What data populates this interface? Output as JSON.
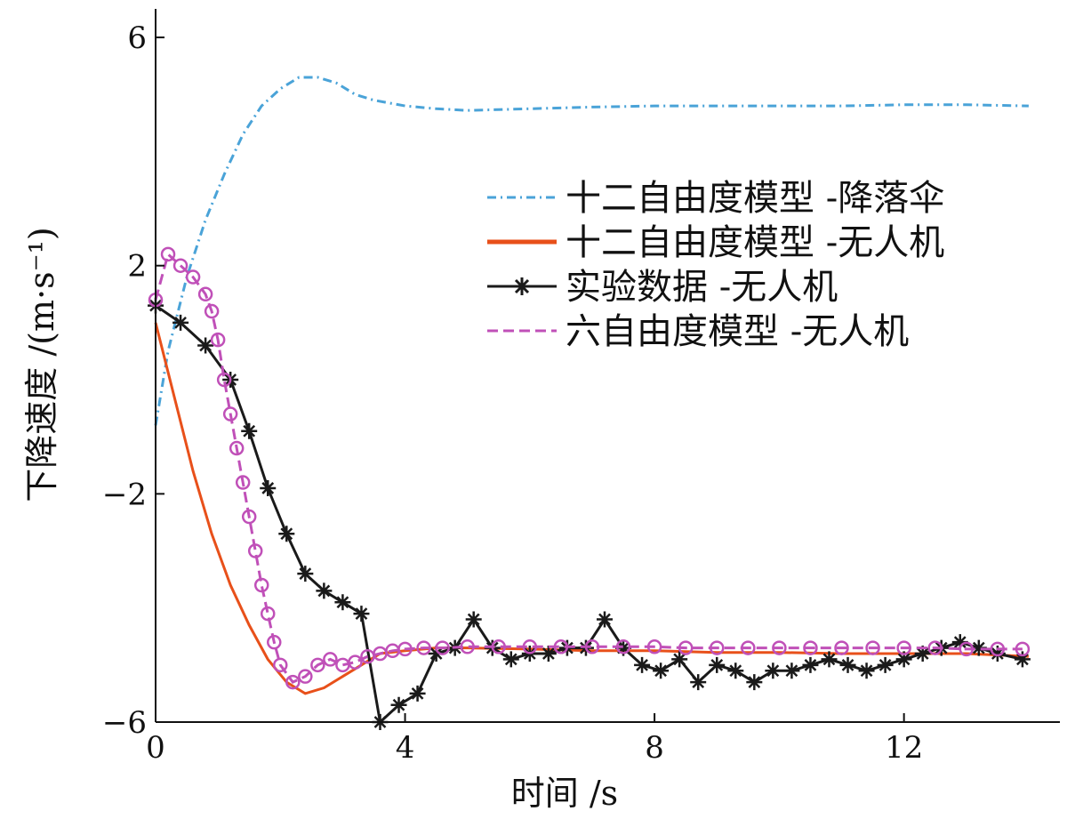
{
  "chart_data": {
    "type": "line",
    "xlabel": "时间 /s",
    "ylabel": "下降速度 /(m·s⁻¹)",
    "xlim": [
      0,
      14.5
    ],
    "ylim": [
      -6,
      6.5
    ],
    "xticks": [
      0,
      4,
      8,
      12
    ],
    "yticks": [
      -6,
      -2,
      2,
      6
    ],
    "xtick_labels": [
      "0",
      "4",
      "8",
      "12"
    ],
    "ytick_labels": [
      "−6",
      "−2",
      "2",
      "6"
    ],
    "grid": false,
    "legend_position": "center-right",
    "series": [
      {
        "name": "十二自由度模型 -降落伞",
        "color": "#4aa3d8",
        "style": "dash-dot",
        "x": [
          0,
          0.2,
          0.5,
          0.8,
          1.1,
          1.4,
          1.7,
          2.0,
          2.3,
          2.6,
          2.9,
          3.2,
          3.5,
          4.0,
          4.5,
          5.0,
          6.0,
          7.0,
          8.0,
          9.0,
          10.0,
          11.0,
          12.0,
          13.0,
          14.0
        ],
        "values": [
          -0.8,
          0.5,
          1.8,
          2.8,
          3.6,
          4.3,
          4.8,
          5.1,
          5.3,
          5.3,
          5.2,
          5.0,
          4.9,
          4.8,
          4.75,
          4.72,
          4.75,
          4.78,
          4.8,
          4.8,
          4.8,
          4.8,
          4.82,
          4.82,
          4.8
        ]
      },
      {
        "name": "十二自由度模型 -无人机",
        "color": "#e8501a",
        "style": "solid",
        "x": [
          0,
          0.3,
          0.6,
          0.9,
          1.2,
          1.5,
          1.8,
          2.1,
          2.4,
          2.7,
          3.0,
          3.3,
          3.6,
          4.0,
          4.5,
          5.0,
          6.0,
          7.0,
          8.0,
          9.0,
          10.0,
          11.0,
          12.0,
          13.0,
          14.0
        ],
        "values": [
          1.0,
          -0.3,
          -1.6,
          -2.7,
          -3.6,
          -4.3,
          -4.9,
          -5.3,
          -5.5,
          -5.4,
          -5.2,
          -5.0,
          -4.8,
          -4.75,
          -4.7,
          -4.7,
          -4.72,
          -4.75,
          -4.75,
          -4.78,
          -4.78,
          -4.8,
          -4.8,
          -4.8,
          -4.85
        ]
      },
      {
        "name": "实验数据 -无人机",
        "color": "#1a1a1a",
        "style": "solid-star",
        "x": [
          0,
          0.4,
          0.8,
          1.2,
          1.5,
          1.8,
          2.1,
          2.4,
          2.7,
          3.0,
          3.3,
          3.6,
          3.9,
          4.2,
          4.5,
          4.8,
          5.1,
          5.4,
          5.7,
          6.0,
          6.3,
          6.6,
          6.9,
          7.2,
          7.5,
          7.8,
          8.1,
          8.4,
          8.7,
          9.0,
          9.3,
          9.6,
          9.9,
          10.2,
          10.5,
          10.8,
          11.1,
          11.4,
          11.7,
          12.0,
          12.3,
          12.6,
          12.9,
          13.2,
          13.5,
          13.9
        ],
        "values": [
          1.3,
          1.0,
          0.6,
          0.0,
          -0.9,
          -1.9,
          -2.7,
          -3.4,
          -3.7,
          -3.9,
          -4.1,
          -6.0,
          -5.7,
          -5.5,
          -4.8,
          -4.7,
          -4.2,
          -4.7,
          -4.9,
          -4.8,
          -4.8,
          -4.7,
          -4.7,
          -4.2,
          -4.7,
          -5.0,
          -5.1,
          -4.9,
          -5.3,
          -5.0,
          -5.1,
          -5.3,
          -5.1,
          -5.1,
          -5.0,
          -4.9,
          -5.0,
          -5.1,
          -5.0,
          -4.9,
          -4.8,
          -4.7,
          -4.6,
          -4.7,
          -4.8,
          -4.9
        ]
      },
      {
        "name": "六自由度模型 -无人机",
        "color": "#c050b8",
        "style": "dashed-circle",
        "x": [
          0,
          0.2,
          0.4,
          0.6,
          0.8,
          0.9,
          1.0,
          1.1,
          1.2,
          1.3,
          1.4,
          1.5,
          1.6,
          1.7,
          1.8,
          1.9,
          2.0,
          2.2,
          2.4,
          2.6,
          2.8,
          3.0,
          3.2,
          3.4,
          3.6,
          3.8,
          4.0,
          4.3,
          4.6,
          5.0,
          5.5,
          6.0,
          6.5,
          7.0,
          7.5,
          8.0,
          8.5,
          9.0,
          9.5,
          10.0,
          10.5,
          11.0,
          11.5,
          12.0,
          12.5,
          13.0,
          13.5,
          13.9
        ],
        "values": [
          1.4,
          2.2,
          2.0,
          1.8,
          1.5,
          1.2,
          0.7,
          0.0,
          -0.6,
          -1.2,
          -1.8,
          -2.4,
          -3.0,
          -3.6,
          -4.1,
          -4.6,
          -5.0,
          -5.3,
          -5.2,
          -5.0,
          -4.9,
          -5.0,
          -4.95,
          -4.85,
          -4.8,
          -4.75,
          -4.72,
          -4.7,
          -4.7,
          -4.68,
          -4.68,
          -4.68,
          -4.68,
          -4.68,
          -4.68,
          -4.68,
          -4.7,
          -4.7,
          -4.7,
          -4.7,
          -4.7,
          -4.7,
          -4.7,
          -4.7,
          -4.7,
          -4.72,
          -4.72,
          -4.72
        ]
      }
    ]
  }
}
